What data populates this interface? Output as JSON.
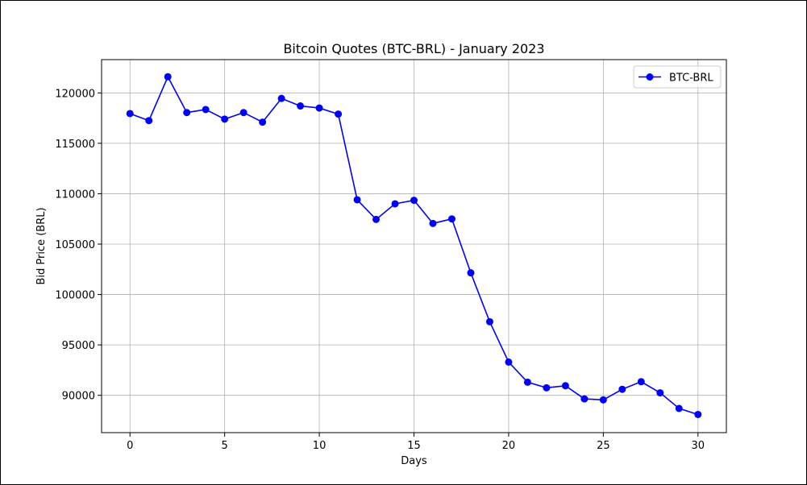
{
  "chart_data": {
    "type": "line",
    "title": "Bitcoin Quotes (BTC-BRL) - January 2023",
    "xlabel": "Days",
    "ylabel": "Bid Price (BRL)",
    "xlim": [
      -1.5,
      31.5
    ],
    "ylim": [
      86300,
      123300
    ],
    "x_ticks": [
      0,
      5,
      10,
      15,
      20,
      25,
      30
    ],
    "y_ticks": [
      90000,
      95000,
      100000,
      105000,
      110000,
      115000,
      120000
    ],
    "grid": true,
    "legend_position": "top-right",
    "series": [
      {
        "name": "BTC-BRL",
        "color": "#0000ff",
        "marker": "circle",
        "x": [
          0,
          1,
          2,
          3,
          4,
          5,
          6,
          7,
          8,
          9,
          10,
          11,
          12,
          13,
          14,
          15,
          16,
          17,
          18,
          19,
          20,
          21,
          22,
          23,
          24,
          25,
          26,
          27,
          28,
          29,
          30
        ],
        "values": [
          117950,
          117250,
          121600,
          118050,
          118350,
          117400,
          118050,
          117100,
          119450,
          118700,
          118500,
          117900,
          109400,
          107450,
          109000,
          109350,
          107050,
          107500,
          102150,
          97300,
          93300,
          91300,
          90750,
          90950,
          89650,
          89550,
          90600,
          91350,
          90250,
          88700,
          88100
        ]
      }
    ]
  }
}
